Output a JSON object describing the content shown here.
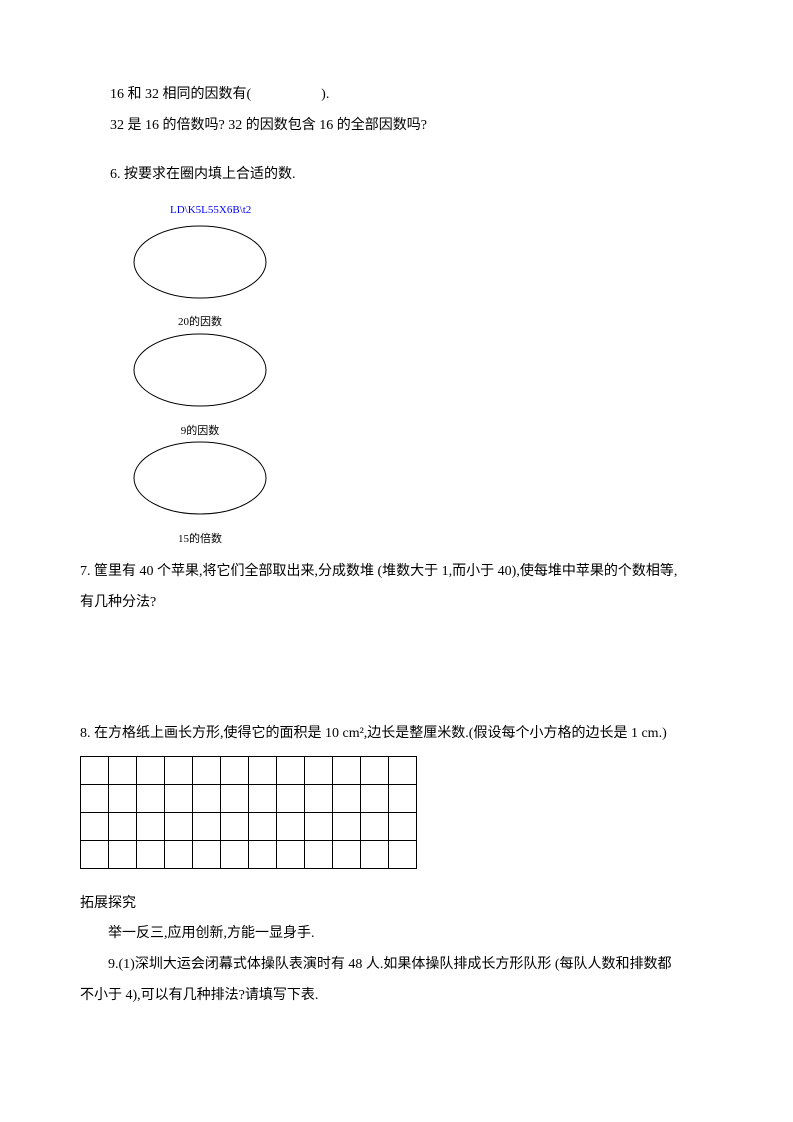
{
  "intro": {
    "line1": "16 和 32 相同的因数有(　　　　　).",
    "line2": "32 是 16 的倍数吗? 32 的因数包含 16 的全部因数吗?"
  },
  "q6": {
    "prompt": "6. 按要求在圈内填上合适的数.",
    "link": "LD\\K5L55X6B\\t2",
    "ellipse1_label": "20的因数",
    "ellipse2_label": "9的因数",
    "ellipse3_label": "15的倍数",
    "ellipse": {
      "width": 140,
      "height": 78,
      "stroke": "#000000",
      "stroke_width": 1
    }
  },
  "q7": {
    "text": "7. 筐里有 40 个苹果,将它们全部取出来,分成数堆 (堆数大于 1,而小于 40),使每堆中苹果的个数相等,有几种分法?"
  },
  "q8": {
    "line1": "8. 在方格纸上画长方形,使得它的面积是 10 cm²,边长是整厘米数.(假设每个小方格的边长是 1 cm.)",
    "grid": {
      "rows": 4,
      "cols": 12
    }
  },
  "tuozhan": {
    "title": "拓展探究",
    "sub": "举一反三,应用创新,方能一显身手.",
    "q9": "9.(1)深圳大运会闭幕式体操队表演时有 48 人.如果体操队排成长方形队形 (每队人数和排数都不小于 4),可以有几种排法?请填写下表."
  }
}
